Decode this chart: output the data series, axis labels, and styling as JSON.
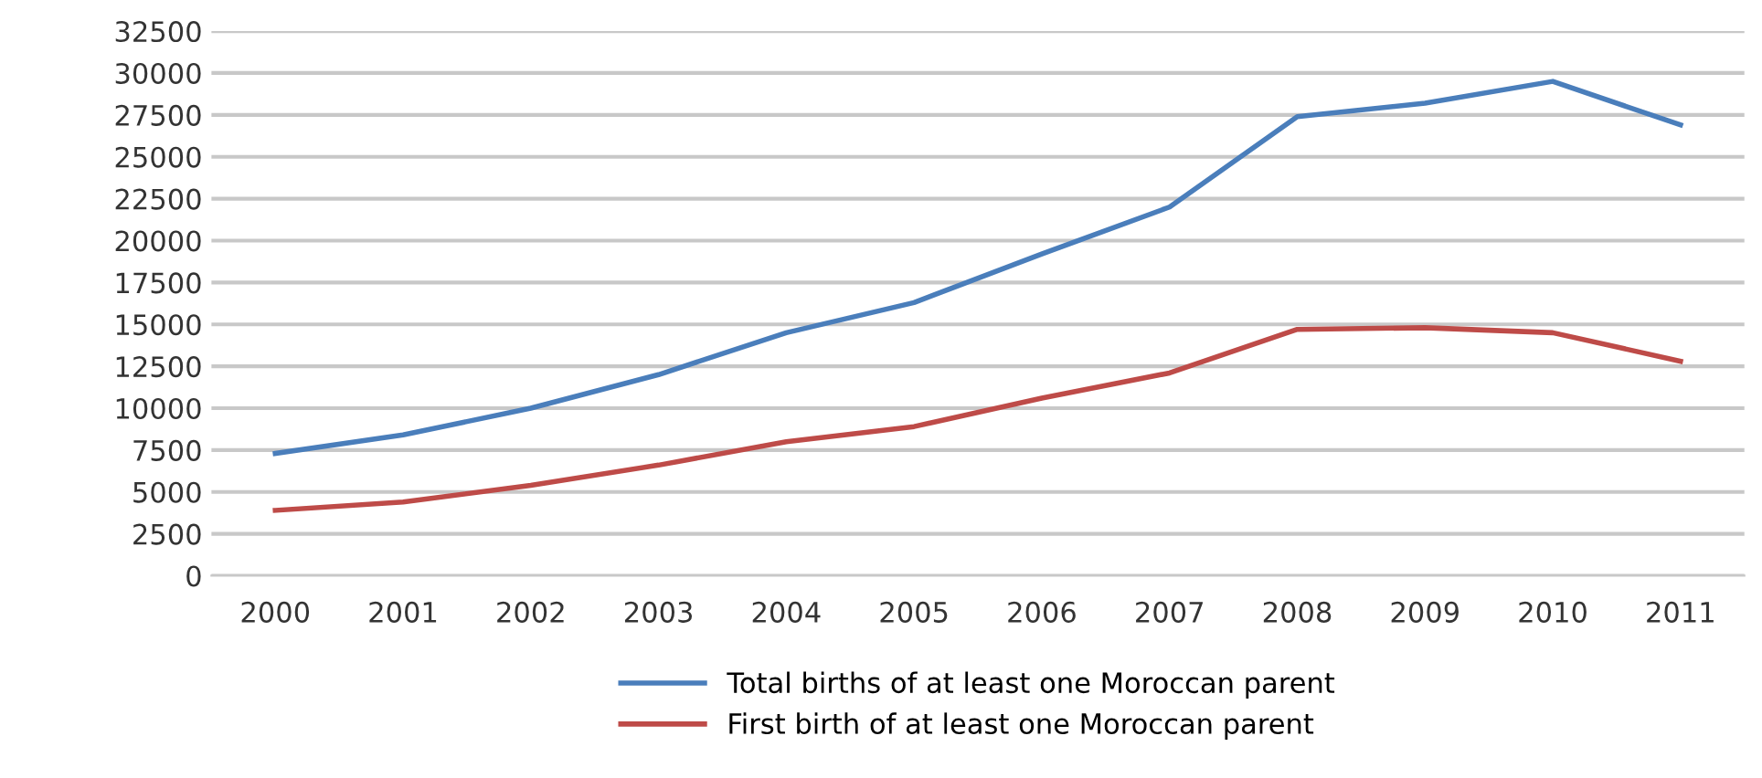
{
  "chart_data": {
    "type": "line",
    "categories": [
      "2000",
      "2001",
      "2002",
      "2003",
      "2004",
      "2005",
      "2006",
      "2007",
      "2008",
      "2009",
      "2010",
      "2011"
    ],
    "series": [
      {
        "name": "Total births of at least one Moroccan parent",
        "color": "#4a7ebb",
        "values": [
          7300,
          8400,
          10000,
          12000,
          14500,
          16300,
          19200,
          22000,
          27400,
          28200,
          29500,
          26900
        ]
      },
      {
        "name": "First birth of at least one Moroccan parent",
        "color": "#be4b48",
        "values": [
          3900,
          4400,
          5400,
          6600,
          8000,
          8900,
          10600,
          12100,
          14700,
          14800,
          14500,
          12800
        ]
      }
    ],
    "ylim": [
      0,
      32500
    ],
    "yticks": [
      0,
      2500,
      5000,
      7500,
      10000,
      12500,
      15000,
      17500,
      20000,
      22500,
      25000,
      27500,
      30000,
      32500
    ],
    "grid": "y",
    "legend": "bottom",
    "marker": "none",
    "line_style": "solid"
  }
}
